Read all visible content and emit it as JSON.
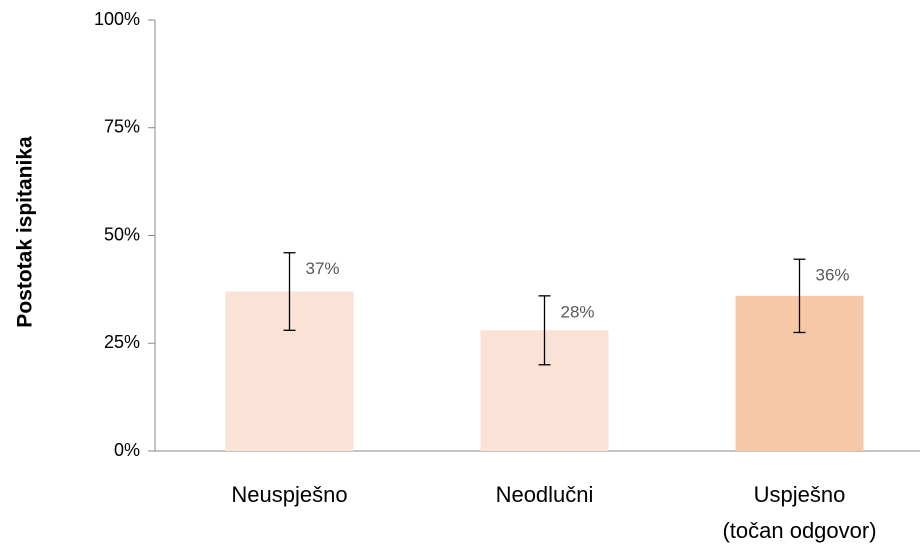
{
  "chart_data": {
    "type": "bar",
    "ylabel": "Postotak ispitanika",
    "categories": [
      "Neuspješno",
      "Neodlučni",
      "Uspješno\n(točan odgovor)"
    ],
    "values": [
      37,
      28,
      36
    ],
    "value_labels": [
      "37%",
      "28%",
      "36%"
    ],
    "errors": [
      9,
      8,
      8.5
    ],
    "colors": [
      "#fae3d6",
      "#fae3d6",
      "#f7c8a8"
    ],
    "ylim": [
      0,
      100
    ],
    "yticks": [
      {
        "value": 0,
        "label": "0%"
      },
      {
        "value": 25,
        "label": "25%"
      },
      {
        "value": 50,
        "label": "50%"
      },
      {
        "value": 75,
        "label": "75%"
      },
      {
        "value": 100,
        "label": "100%"
      }
    ],
    "grid": false
  }
}
